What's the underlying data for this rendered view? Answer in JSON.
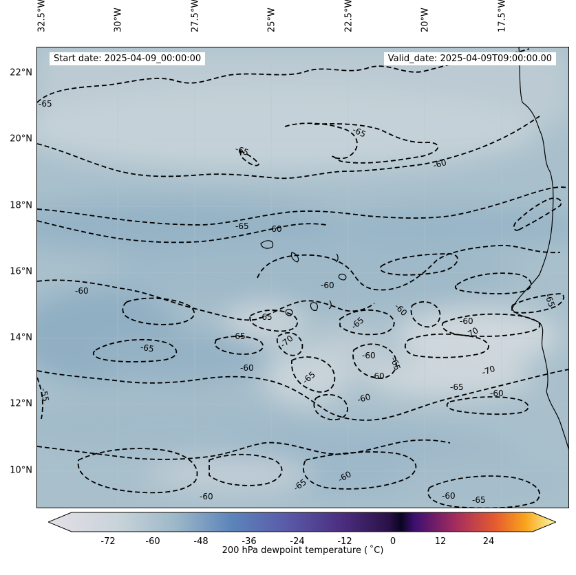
{
  "header": {
    "start_date": "Start date: 2025-04-09_00:00:00",
    "valid_date": "Valid_date: 2025-04-09T09:00:00.00"
  },
  "longitude_labels": [
    "32.5°W",
    "30°W",
    "27.5°W",
    "25°W",
    "22.5°W",
    "20°W",
    "17.5°W"
  ],
  "latitude_labels": [
    "22°N",
    "20°N",
    "18°N",
    "16°N",
    "14°N",
    "12°N",
    "10°N"
  ],
  "contour_labels": [
    "-65",
    "-65",
    "-65",
    "-60",
    "-65",
    "-60",
    "-60",
    "-60",
    "-65",
    "-65",
    "-60",
    "-65",
    "-60",
    "-65",
    "-60",
    "-70",
    "-70",
    "-60",
    "-65",
    "-60",
    "-65",
    "-70",
    "-65",
    "-60",
    "-65",
    "-60",
    "-65",
    "-60",
    "-60",
    "-65",
    "-60",
    "-55"
  ],
  "colorbar": {
    "label": "200 hPa dewpoint temperature ( ˚C)",
    "ticks": [
      "-72",
      "-60",
      "-48",
      "-36",
      "-24",
      "-12",
      "0",
      "12",
      "24"
    ],
    "colors": {
      "cold_end": "#e6e0e8",
      "mid_blue": "#5a83ba",
      "purple": "#3a1c60",
      "zero": "#0a0520",
      "warm": "#d84c3e",
      "hot_end": "#fbfca8"
    }
  },
  "map_colors": {
    "field_light": "#c3d0d6",
    "field_mid": "#a8bfcb",
    "field_dark": "#93b1c4",
    "coast": "#000000",
    "contour": "#000000"
  }
}
